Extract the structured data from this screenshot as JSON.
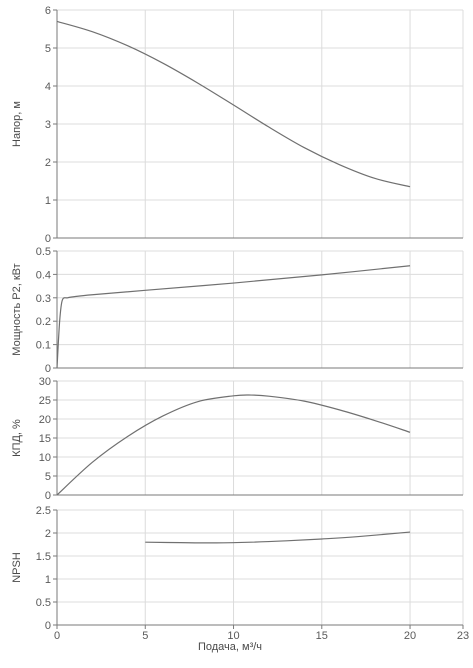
{
  "chart_data": [
    {
      "type": "line",
      "ylabel": "Напор, м",
      "xlim": [
        0,
        23
      ],
      "ylim": [
        0,
        6
      ],
      "yticks": [
        0,
        1,
        2,
        3,
        4,
        5,
        6
      ],
      "grid": true,
      "series": [
        {
          "x": [
            0,
            2,
            4,
            6,
            8,
            10,
            12,
            14,
            16,
            18,
            20
          ],
          "values": [
            5.7,
            5.43,
            5.06,
            4.6,
            4.07,
            3.5,
            2.92,
            2.38,
            1.93,
            1.57,
            1.35
          ]
        }
      ]
    },
    {
      "type": "line",
      "ylabel": "Мощность Р2, кВт",
      "xlim": [
        0,
        23
      ],
      "ylim": [
        0,
        0.5
      ],
      "yticks": [
        0,
        0.1,
        0.2,
        0.3,
        0.4,
        0.5
      ],
      "grid": true,
      "series": [
        {
          "x": [
            0,
            0.15,
            0.3,
            0.6,
            1,
            2,
            5,
            10,
            15,
            20
          ],
          "values": [
            0,
            0.2,
            0.29,
            0.3,
            0.305,
            0.313,
            0.332,
            0.363,
            0.398,
            0.437
          ]
        }
      ]
    },
    {
      "type": "line",
      "ylabel": "КПД, %",
      "xlim": [
        0,
        23
      ],
      "ylim": [
        0,
        30
      ],
      "yticks": [
        0,
        5,
        10,
        15,
        20,
        25,
        30
      ],
      "grid": true,
      "series": [
        {
          "x": [
            0,
            2,
            4,
            6,
            8,
            10,
            11,
            12,
            14,
            16,
            18,
            20
          ],
          "values": [
            0,
            8.6,
            15.4,
            20.8,
            24.6,
            26.1,
            26.3,
            26.0,
            24.7,
            22.4,
            19.6,
            16.5
          ]
        }
      ]
    },
    {
      "type": "line",
      "ylabel": "NPSH",
      "xlabel": "Подача, м³/ч",
      "xlim": [
        0,
        23
      ],
      "ylim": [
        0,
        2.5
      ],
      "yticks": [
        0,
        0.5,
        1,
        1.5,
        2,
        2.5
      ],
      "xticks": [
        0,
        5,
        10,
        15,
        20,
        23
      ],
      "grid": true,
      "series": [
        {
          "x": [
            5,
            7,
            9,
            11,
            13,
            15,
            17,
            20
          ],
          "values": [
            1.8,
            1.79,
            1.785,
            1.8,
            1.83,
            1.87,
            1.92,
            2.02
          ]
        }
      ]
    }
  ]
}
